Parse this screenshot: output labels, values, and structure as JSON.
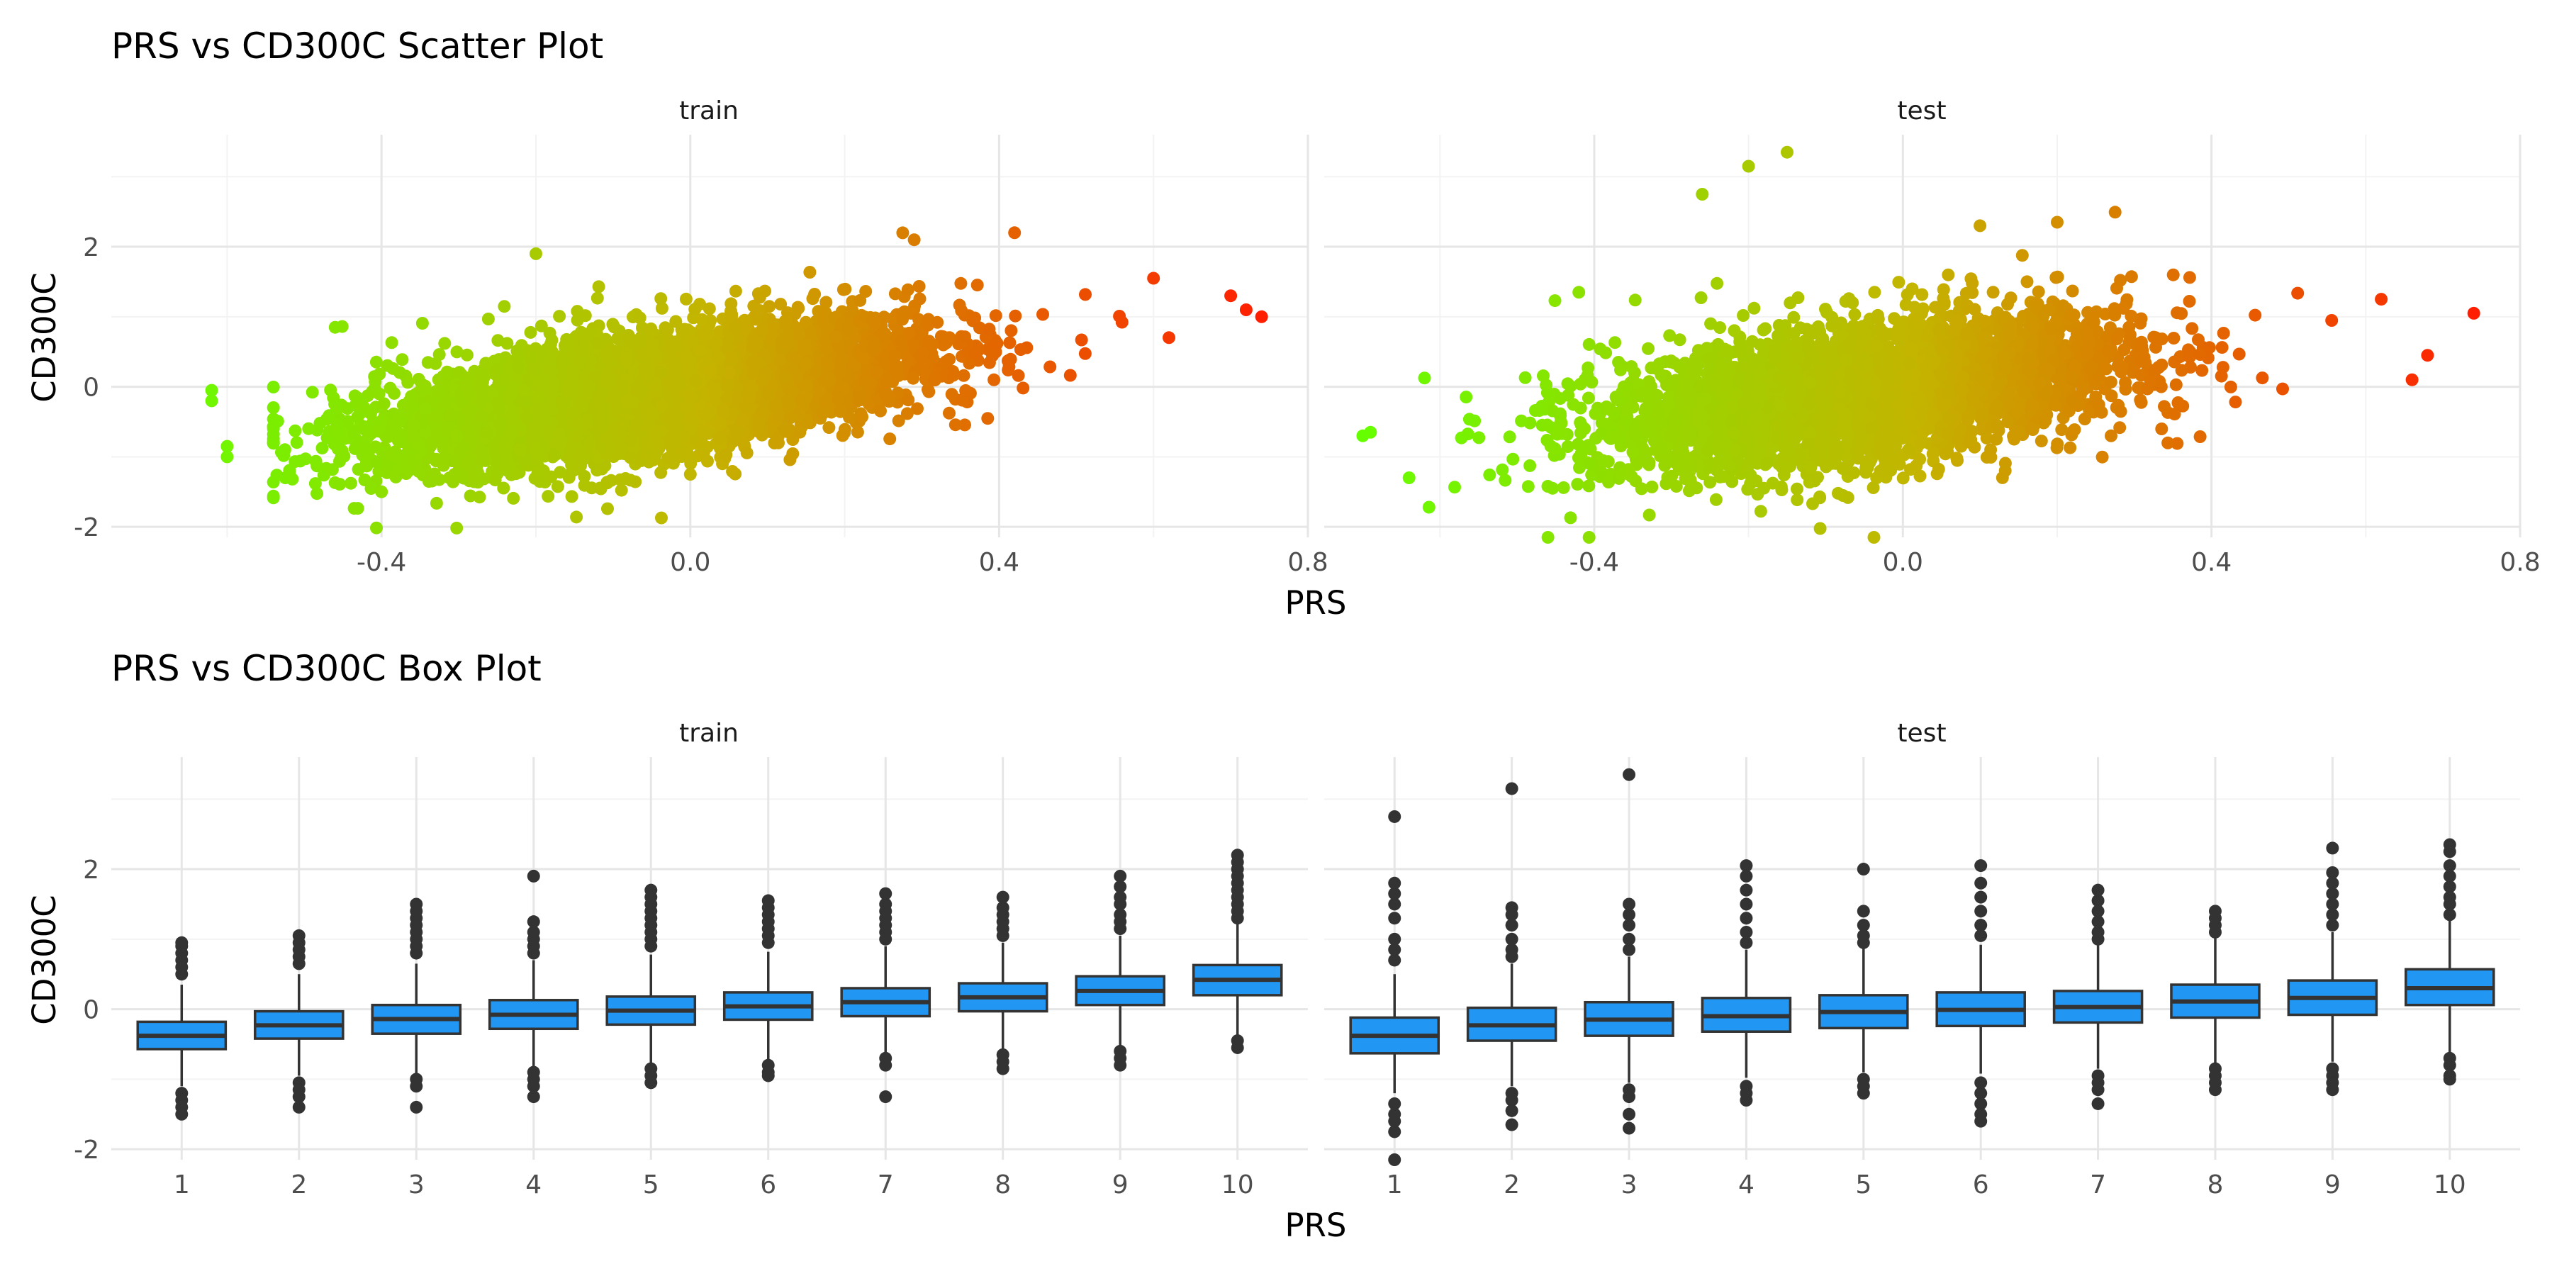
{
  "chart_data": [
    {
      "type": "scatter",
      "title": "PRS vs CD300C Scatter Plot",
      "xlabel": "PRS",
      "ylabel": "CD300C",
      "xlim": [
        -0.75,
        0.8
      ],
      "ylim": [
        -2.15,
        3.6
      ],
      "x_ticks": [
        -0.4,
        0.0,
        0.4,
        0.8
      ],
      "x_tick_labels": [
        "-0.4",
        "0.0",
        "0.4",
        "0.8"
      ],
      "y_ticks": [
        -2,
        0,
        2
      ],
      "y_tick_labels": [
        "-2",
        "0",
        "2"
      ],
      "grid": true,
      "legend": "none",
      "color_scale": {
        "low": "#66ff00",
        "mid": "#c4b400",
        "high": "#ff1e00",
        "variable": "PRS"
      },
      "panels": [
        {
          "name": "train",
          "n_points": 6000,
          "x_range": [
            -0.62,
            0.74
          ],
          "slope": 1.6,
          "residual_sd": 0.42,
          "points": [
            {
              "x": -0.62,
              "y": -0.05
            },
            {
              "x": -0.62,
              "y": -0.2
            },
            {
              "x": -0.6,
              "y": -1.0
            },
            {
              "x": -0.6,
              "y": -0.85
            },
            {
              "x": -0.46,
              "y": 0.85
            },
            {
              "x": -0.4,
              "y": -1.5
            },
            {
              "x": -0.2,
              "y": 1.9
            },
            {
              "x": 0.0,
              "y": -1.25
            },
            {
              "x": 0.29,
              "y": 2.1
            },
            {
              "x": 0.42,
              "y": 2.2
            },
            {
              "x": 0.6,
              "y": 1.55
            },
            {
              "x": 0.7,
              "y": 1.3
            },
            {
              "x": 0.72,
              "y": 1.1
            },
            {
              "x": 0.74,
              "y": 1.0
            }
          ]
        },
        {
          "name": "test",
          "n_points": 4000,
          "x_range": [
            -0.7,
            0.74
          ],
          "slope": 1.45,
          "residual_sd": 0.5,
          "points": [
            {
              "x": -0.7,
              "y": -0.7
            },
            {
              "x": -0.69,
              "y": -0.65
            },
            {
              "x": -0.64,
              "y": -1.3
            },
            {
              "x": -0.46,
              "y": -2.15
            },
            {
              "x": -0.42,
              "y": 1.35
            },
            {
              "x": -0.2,
              "y": 3.15
            },
            {
              "x": -0.26,
              "y": 2.75
            },
            {
              "x": -0.15,
              "y": 3.35
            },
            {
              "x": 0.1,
              "y": 2.3
            },
            {
              "x": 0.2,
              "y": 2.35
            },
            {
              "x": 0.62,
              "y": 1.25
            },
            {
              "x": 0.74,
              "y": 1.05
            },
            {
              "x": 0.68,
              "y": 0.45
            },
            {
              "x": 0.66,
              "y": 0.1
            }
          ]
        }
      ]
    },
    {
      "type": "box",
      "title": "PRS vs CD300C Box Plot",
      "xlabel": "PRS",
      "ylabel": "CD300C",
      "categories": [
        "1",
        "2",
        "3",
        "4",
        "5",
        "6",
        "7",
        "8",
        "9",
        "10"
      ],
      "ylim": [
        -2.15,
        3.6
      ],
      "y_ticks": [
        -2,
        0,
        2
      ],
      "y_tick_labels": [
        "-2",
        "0",
        "2"
      ],
      "grid": true,
      "legend": "none",
      "box_fill": "#2196f3",
      "box_line": "#333333",
      "panels": [
        {
          "name": "train",
          "boxes": [
            {
              "q1": -0.57,
              "median": -0.38,
              "q3": -0.18,
              "whisker_low": -1.1,
              "whisker_high": 0.35,
              "outliers": [
                -1.2,
                -1.3,
                -1.4,
                -1.5,
                0.5,
                0.6,
                0.7,
                0.8,
                0.9,
                0.95
              ]
            },
            {
              "q1": -0.42,
              "median": -0.23,
              "q3": -0.03,
              "whisker_low": -0.95,
              "whisker_high": 0.5,
              "outliers": [
                -1.05,
                -1.15,
                -1.25,
                -1.4,
                0.65,
                0.75,
                0.85,
                0.95,
                1.05
              ]
            },
            {
              "q1": -0.35,
              "median": -0.14,
              "q3": 0.06,
              "whisker_low": -0.92,
              "whisker_high": 0.65,
              "outliers": [
                -1.0,
                -1.1,
                -1.4,
                0.8,
                0.9,
                1.0,
                1.1,
                1.2,
                1.3,
                1.4,
                1.5
              ]
            },
            {
              "q1": -0.28,
              "median": -0.08,
              "q3": 0.13,
              "whisker_low": -0.82,
              "whisker_high": 0.7,
              "outliers": [
                -0.9,
                -1.0,
                -1.1,
                -1.25,
                0.8,
                0.9,
                1.0,
                1.1,
                1.25,
                1.9
              ]
            },
            {
              "q1": -0.22,
              "median": -0.02,
              "q3": 0.18,
              "whisker_low": -0.8,
              "whisker_high": 0.78,
              "outliers": [
                -0.85,
                -0.95,
                -1.05,
                0.9,
                1.0,
                1.1,
                1.2,
                1.3,
                1.4,
                1.5,
                1.6,
                1.7
              ]
            },
            {
              "q1": -0.15,
              "median": 0.04,
              "q3": 0.24,
              "whisker_low": -0.72,
              "whisker_high": 0.82,
              "outliers": [
                -0.8,
                -0.9,
                -0.95,
                0.95,
                1.05,
                1.15,
                1.25,
                1.35,
                1.45,
                1.55
              ]
            },
            {
              "q1": -0.1,
              "median": 0.1,
              "q3": 0.3,
              "whisker_low": -0.62,
              "whisker_high": 0.9,
              "outliers": [
                -0.7,
                -0.8,
                -1.25,
                1.0,
                1.1,
                1.2,
                1.3,
                1.4,
                1.5,
                1.65
              ]
            },
            {
              "q1": -0.03,
              "median": 0.17,
              "q3": 0.37,
              "whisker_low": -0.58,
              "whisker_high": 0.95,
              "outliers": [
                -0.65,
                -0.75,
                -0.85,
                1.05,
                1.15,
                1.25,
                1.35,
                1.45,
                1.6
              ]
            },
            {
              "q1": 0.06,
              "median": 0.26,
              "q3": 0.47,
              "whisker_low": -0.52,
              "whisker_high": 1.05,
              "outliers": [
                -0.6,
                -0.7,
                -0.8,
                1.15,
                1.25,
                1.35,
                1.5,
                1.6,
                1.75,
                1.9
              ]
            },
            {
              "q1": 0.2,
              "median": 0.42,
              "q3": 0.63,
              "whisker_low": -0.4,
              "whisker_high": 1.22,
              "outliers": [
                -0.45,
                -0.55,
                1.3,
                1.4,
                1.5,
                1.6,
                1.7,
                1.8,
                1.9,
                2.0,
                2.1,
                2.2
              ]
            }
          ]
        },
        {
          "name": "test",
          "boxes": [
            {
              "q1": -0.63,
              "median": -0.38,
              "q3": -0.12,
              "whisker_low": -1.2,
              "whisker_high": 0.5,
              "outliers": [
                -1.35,
                -1.5,
                -1.6,
                -1.75,
                -2.15,
                0.7,
                0.85,
                1.0,
                1.3,
                1.5,
                1.65,
                1.8,
                2.75
              ]
            },
            {
              "q1": -0.45,
              "median": -0.23,
              "q3": 0.02,
              "whisker_low": -1.1,
              "whisker_high": 0.65,
              "outliers": [
                -1.2,
                -1.3,
                -1.45,
                -1.65,
                0.75,
                0.85,
                1.0,
                1.2,
                1.35,
                1.45,
                3.15
              ]
            },
            {
              "q1": -0.38,
              "median": -0.15,
              "q3": 0.1,
              "whisker_low": -1.05,
              "whisker_high": 0.75,
              "outliers": [
                -1.15,
                -1.25,
                -1.5,
                -1.7,
                0.85,
                1.0,
                1.2,
                1.35,
                1.5,
                3.35
              ]
            },
            {
              "q1": -0.32,
              "median": -0.1,
              "q3": 0.16,
              "whisker_low": -0.98,
              "whisker_high": 0.85,
              "outliers": [
                -1.1,
                -1.2,
                -1.3,
                0.95,
                1.1,
                1.3,
                1.5,
                1.7,
                1.9,
                2.05
              ]
            },
            {
              "q1": -0.27,
              "median": -0.04,
              "q3": 0.2,
              "whisker_low": -0.9,
              "whisker_high": 0.88,
              "outliers": [
                -1.0,
                -1.1,
                -1.2,
                0.95,
                1.05,
                1.2,
                1.4,
                2.0
              ]
            },
            {
              "q1": -0.24,
              "median": -0.01,
              "q3": 0.24,
              "whisker_low": -0.92,
              "whisker_high": 0.92,
              "outliers": [
                -1.05,
                -1.2,
                -1.35,
                -1.5,
                -1.6,
                1.05,
                1.2,
                1.4,
                1.6,
                1.8,
                2.05
              ]
            },
            {
              "q1": -0.19,
              "median": 0.03,
              "q3": 0.26,
              "whisker_low": -0.85,
              "whisker_high": 0.92,
              "outliers": [
                -0.95,
                -1.05,
                -1.15,
                -1.35,
                1.0,
                1.1,
                1.25,
                1.4,
                1.55,
                1.7
              ]
            },
            {
              "q1": -0.12,
              "median": 0.11,
              "q3": 0.35,
              "whisker_low": -0.78,
              "whisker_high": 1.02,
              "outliers": [
                -0.85,
                -0.95,
                -1.05,
                -1.15,
                1.1,
                1.2,
                1.3,
                1.4
              ]
            },
            {
              "q1": -0.08,
              "median": 0.16,
              "q3": 0.41,
              "whisker_low": -0.75,
              "whisker_high": 1.1,
              "outliers": [
                -0.85,
                -0.95,
                -1.05,
                -1.15,
                1.2,
                1.35,
                1.5,
                1.65,
                1.8,
                1.95,
                2.3
              ]
            },
            {
              "q1": 0.06,
              "median": 0.3,
              "q3": 0.57,
              "whisker_low": -0.62,
              "whisker_high": 1.28,
              "outliers": [
                -0.7,
                -0.8,
                -0.95,
                -1.0,
                1.35,
                1.5,
                1.6,
                1.75,
                1.9,
                2.05,
                2.25,
                2.35
              ]
            }
          ]
        }
      ]
    }
  ]
}
